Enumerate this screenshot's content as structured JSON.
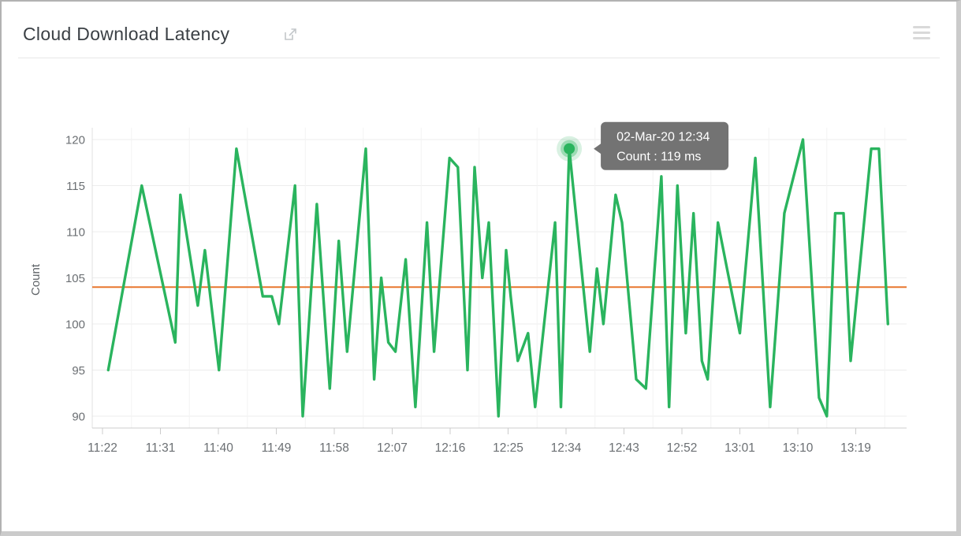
{
  "header": {
    "title": "Cloud Download Latency",
    "external_link_icon": "open-in-new-window",
    "menu_icon": "hamburger-menu"
  },
  "tooltip": {
    "line1": "02-Mar-20 12:34",
    "line2": "Count : 119 ms"
  },
  "chart_data": {
    "type": "line",
    "title": "Cloud Download Latency",
    "ylabel": "Count",
    "unit": "ms",
    "ylim": [
      88.7,
      121.4
    ],
    "y_ticks": [
      90,
      95,
      100,
      105,
      110,
      115,
      120
    ],
    "x_ticks": [
      "11:22",
      "11:31",
      "11:40",
      "11:49",
      "11:58",
      "12:07",
      "12:16",
      "12:25",
      "12:34",
      "12:43",
      "12:52",
      "13:01",
      "13:10",
      "13:19"
    ],
    "x_tick_interval_min": 9,
    "grid": true,
    "legend_position": "none",
    "series_name": "Count",
    "average_line_value": 104,
    "colors": {
      "line": "#2ab45e",
      "average": "#e8772e",
      "grid_h": "#ececec",
      "grid_v": "#f3f3f3",
      "axis": "#cccccc",
      "tick_label": "#6b6f73",
      "tooltip_bg": "#737373",
      "tooltip_text": "#ffffff"
    },
    "points_format": "[minutes_after_11:22, count_ms]",
    "points": [
      [
        0.9,
        95
      ],
      [
        6.1,
        115
      ],
      [
        11.3,
        98
      ],
      [
        12.1,
        114
      ],
      [
        14.8,
        102
      ],
      [
        15.9,
        108
      ],
      [
        18.1,
        95
      ],
      [
        20.8,
        119
      ],
      [
        24.9,
        103
      ],
      [
        26.3,
        103
      ],
      [
        27.4,
        100
      ],
      [
        29.9,
        115
      ],
      [
        31.1,
        90
      ],
      [
        33.3,
        113
      ],
      [
        35.3,
        93
      ],
      [
        36.7,
        109
      ],
      [
        38,
        97
      ],
      [
        40.9,
        119
      ],
      [
        42.2,
        94
      ],
      [
        43.3,
        105
      ],
      [
        44.4,
        98
      ],
      [
        45.5,
        97
      ],
      [
        47.1,
        107
      ],
      [
        48.6,
        91
      ],
      [
        50.4,
        111
      ],
      [
        51.5,
        97
      ],
      [
        53.9,
        118
      ],
      [
        55.2,
        117
      ],
      [
        56.7,
        95
      ],
      [
        57.8,
        117
      ],
      [
        59,
        105
      ],
      [
        60,
        111
      ],
      [
        61.5,
        90
      ],
      [
        62.7,
        108
      ],
      [
        63.4,
        103
      ],
      [
        64.5,
        96
      ],
      [
        66.1,
        99
      ],
      [
        67.2,
        91
      ],
      [
        70.3,
        111
      ],
      [
        71.2,
        91
      ],
      [
        72.5,
        119
      ],
      [
        75.7,
        97
      ],
      [
        76.8,
        106
      ],
      [
        77.8,
        100
      ],
      [
        79.7,
        114
      ],
      [
        80.7,
        111
      ],
      [
        82.9,
        94
      ],
      [
        84.4,
        93
      ],
      [
        86.8,
        116
      ],
      [
        88,
        91
      ],
      [
        89.3,
        115
      ],
      [
        90.6,
        99
      ],
      [
        91.8,
        112
      ],
      [
        93.1,
        96
      ],
      [
        94,
        94
      ],
      [
        95.6,
        111
      ],
      [
        97,
        106
      ],
      [
        99,
        99
      ],
      [
        101.4,
        118
      ],
      [
        103.7,
        91
      ],
      [
        105.9,
        112
      ],
      [
        108.8,
        120
      ],
      [
        111.3,
        92
      ],
      [
        112.5,
        90
      ],
      [
        113.8,
        112
      ],
      [
        115.1,
        112
      ],
      [
        116.2,
        96
      ],
      [
        119.4,
        119
      ],
      [
        120.6,
        119
      ],
      [
        122,
        100
      ]
    ],
    "highlight": {
      "m": 72.5,
      "v": 119,
      "time": "02-Mar-20 12:34",
      "count_ms": 119
    }
  }
}
